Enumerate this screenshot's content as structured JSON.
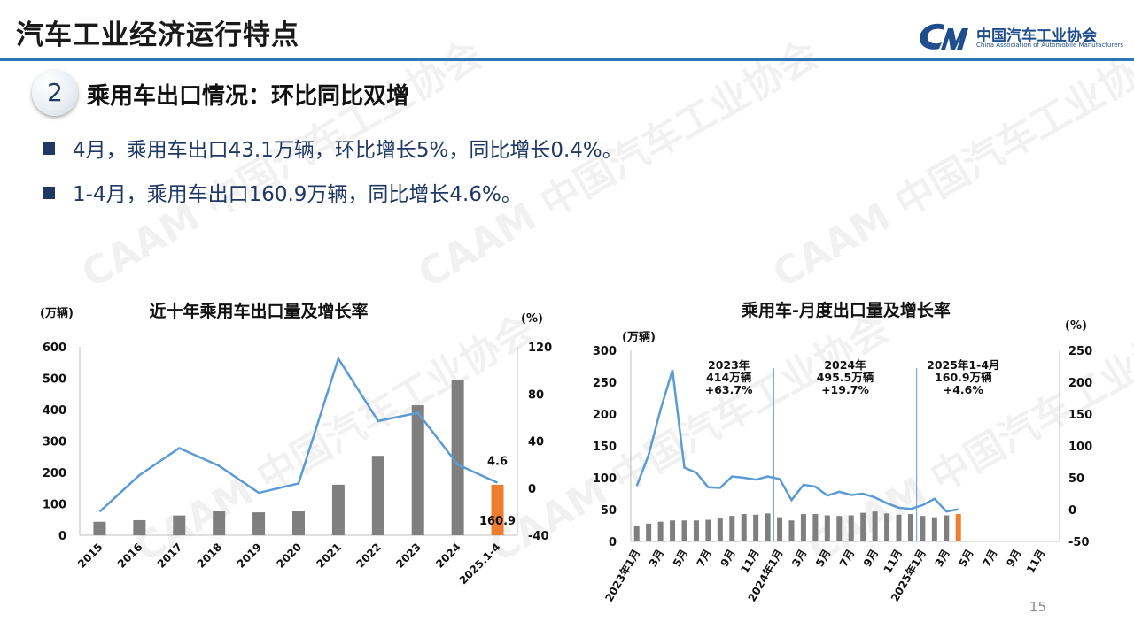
{
  "header": {
    "title": "汽车工业经济运行特点",
    "logo_cn": "中国汽车工业协会",
    "logo_en": "China Association of Automobile Manufacturers",
    "accent_color": "#2e75b6"
  },
  "section": {
    "number": "2",
    "title": "乘用车出口情况：环比同比双增"
  },
  "bullets": [
    "4月，乘用车出口43.1万辆，环比增长5%，同比增长0.4%。",
    "1-4月，乘用车出口160.9万辆，同比增长4.6%。"
  ],
  "page_number": "15",
  "chart_data": [
    {
      "type": "bar",
      "title": "近十年乘用车出口量及增长率",
      "y_unit_label": "(万辆)",
      "y2_unit_label": "(%)",
      "ylim": [
        0,
        600
      ],
      "y2lim": [
        -40,
        120
      ],
      "yticks": [
        "0",
        "100",
        "200",
        "300",
        "400",
        "500",
        "600"
      ],
      "y2ticks": [
        "-40",
        "0",
        "40",
        "80",
        "120"
      ],
      "categories": [
        "2015",
        "2016",
        "2017",
        "2018",
        "2019",
        "2020",
        "2021",
        "2022",
        "2023",
        "2024",
        "2025.1-4"
      ],
      "series": [
        {
          "kind": "bar",
          "values": [
            43,
            48,
            63,
            76,
            73,
            76,
            161,
            253,
            414,
            495.5,
            160.9
          ]
        },
        {
          "kind": "line",
          "values": [
            -20,
            11,
            34,
            19,
            -4,
            4,
            110,
            57,
            64,
            20,
            4.6
          ]
        }
      ],
      "labels": [
        {
          "text": "4.6",
          "target": "2025.1-4 line value"
        },
        {
          "text": "160.9",
          "target": "2025.1-4 bar value"
        }
      ],
      "colors": {
        "bar": "#7f7f7f",
        "bar_highlight": "#ed7d31",
        "line": "#5b9bd5"
      }
    },
    {
      "type": "bar",
      "title": "乘用车-月度出口量及增长率",
      "y_unit_label": "(万辆)",
      "y2_unit_label": "(%)",
      "ylim": [
        0,
        300
      ],
      "y2lim": [
        -50,
        250
      ],
      "yticks": [
        "0",
        "50",
        "100",
        "150",
        "200",
        "250",
        "300"
      ],
      "y2ticks": [
        "-50",
        "0",
        "50",
        "100",
        "150",
        "200",
        "250"
      ],
      "categories": [
        "2023年1月",
        "2月",
        "3月",
        "4月",
        "5月",
        "6月",
        "7月",
        "8月",
        "9月",
        "10月",
        "11月",
        "12月",
        "2024年1月",
        "2月",
        "3月",
        "4月",
        "5月",
        "6月",
        "7月",
        "8月",
        "9月",
        "10月",
        "11月",
        "12月",
        "2025年1月",
        "2月",
        "3月",
        "4月",
        "5月",
        "6月",
        "7月",
        "8月",
        "9月",
        "10月",
        "11月",
        "12月"
      ],
      "xtick_labels": [
        "2023年1月",
        "3月",
        "5月",
        "7月",
        "9月",
        "11月",
        "2024年1月",
        "3月",
        "5月",
        "7月",
        "9月",
        "11月",
        "2025年1月",
        "3月",
        "5月",
        "7月",
        "9月",
        "11月"
      ],
      "series": [
        {
          "kind": "bar",
          "values": [
            25,
            28,
            31,
            33,
            33,
            33,
            34,
            36,
            40,
            43,
            42,
            44,
            38,
            33,
            43,
            43,
            41,
            40,
            41,
            45,
            47,
            44,
            42,
            43,
            40,
            38,
            41,
            43.1,
            null,
            null,
            null,
            null,
            null,
            null,
            null,
            null
          ]
        },
        {
          "kind": "line",
          "values": [
            37,
            86,
            157,
            219,
            66,
            58,
            35,
            34,
            52,
            50,
            47,
            52,
            48,
            15,
            39,
            36,
            22,
            28,
            23,
            25,
            19,
            10,
            3,
            1,
            7,
            17,
            -3,
            0.4,
            null,
            null,
            null,
            null,
            null,
            null,
            null,
            null
          ]
        }
      ],
      "annotations": [
        {
          "lines": [
            "2023年",
            "414万辆",
            "+63.7%"
          ]
        },
        {
          "lines": [
            "2024年",
            "495.5万辆",
            "+19.7%"
          ]
        },
        {
          "lines": [
            "2025年1-4月",
            "160.9万辆",
            "+4.6%"
          ]
        }
      ],
      "colors": {
        "bar": "#7f7f7f",
        "bar_highlight": "#ed7d31",
        "line": "#5b9bd5",
        "divider": "#5b9bd5"
      }
    }
  ]
}
